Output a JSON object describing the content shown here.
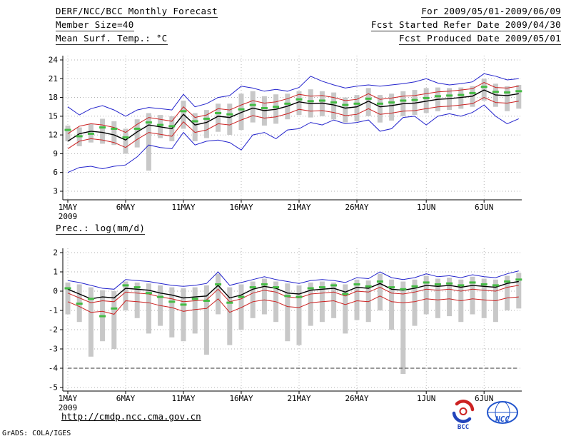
{
  "header": {
    "title": "DERF/NCC/BCC Monthly Forecast",
    "member_size": "Member Size=40",
    "variable_label": "Mean Surf. Temp.: °C",
    "for_range": "For 2009/05/01-2009/06/09",
    "refer_date": "Fcst Started Refer Date 2009/04/30",
    "produced_date": "Fcst Produced Date 2009/05/01"
  },
  "section_labels": {
    "precip": "Prec.: log(mm/d)"
  },
  "footer": {
    "url": "http://cmdp.ncc.cma.gov.cn",
    "grads_credit": "GrADS: COLA/IGES",
    "bcc_logo_text": "BCC",
    "ncc_logo_text": "NCC"
  },
  "colors": {
    "minmax_line": "#2222cc",
    "quartile_line": "#cc2222",
    "mean_line": "#000000",
    "obs_marker": "#44bb44",
    "spread_bar": "#c8c8c8",
    "floor_line": "#333333"
  },
  "chart_data": [
    {
      "type": "line",
      "title": "Mean Surf. Temp.: °C",
      "xlabel": "",
      "ylabel": "",
      "ylim": [
        3,
        24
      ],
      "yticks": [
        3,
        6,
        9,
        12,
        15,
        18,
        21,
        24
      ],
      "grid": "dotted",
      "legend": "none",
      "n_points": 40,
      "x_start": "2009-05-01",
      "x_end": "2009-06-09",
      "x_tick_labels": [
        "1MAY",
        "6MAY",
        "11MAY",
        "16MAY",
        "21MAY",
        "26MAY",
        "1JUN",
        "6JUN"
      ],
      "x_tick_indices": [
        0,
        5,
        10,
        15,
        20,
        25,
        31,
        36
      ],
      "x_year_label": "2009",
      "series": [
        {
          "name": "ensemble-max",
          "color": "#2222cc",
          "width": 1,
          "values": [
            16.5,
            15.2,
            16.2,
            16.7,
            16.0,
            15.0,
            16.0,
            16.4,
            16.2,
            16.0,
            18.5,
            16.5,
            17.0,
            18.0,
            18.3,
            19.8,
            19.5,
            19.0,
            19.3,
            19.0,
            19.6,
            21.4,
            20.6,
            20.0,
            19.5,
            19.8,
            20.0,
            19.8,
            20.0,
            20.2,
            20.5,
            21.0,
            20.3,
            20.0,
            20.2,
            20.5,
            21.8,
            21.4,
            20.8,
            21.0
          ]
        },
        {
          "name": "upper-quartile",
          "color": "#cc2222",
          "width": 1,
          "values": [
            12.2,
            13.4,
            13.8,
            13.6,
            13.2,
            12.4,
            13.7,
            14.8,
            14.5,
            14.2,
            16.5,
            14.8,
            15.2,
            16.2,
            16.0,
            16.8,
            17.5,
            17.1,
            17.3,
            17.8,
            18.5,
            18.2,
            18.3,
            18.0,
            17.5,
            17.7,
            18.6,
            17.7,
            17.9,
            18.2,
            18.3,
            18.6,
            18.9,
            19.0,
            19.2,
            19.4,
            20.4,
            19.6,
            19.5,
            19.8
          ]
        },
        {
          "name": "ensemble-mean",
          "color": "#000000",
          "width": 1.4,
          "values": [
            11.0,
            12.2,
            12.6,
            12.4,
            12.0,
            11.2,
            12.5,
            13.6,
            13.3,
            13.0,
            15.3,
            13.6,
            14.0,
            15.0,
            14.8,
            15.6,
            16.3,
            15.9,
            16.1,
            16.6,
            17.3,
            17.0,
            17.1,
            16.8,
            16.3,
            16.5,
            17.4,
            16.5,
            16.7,
            17.0,
            17.1,
            17.4,
            17.7,
            17.8,
            18.0,
            18.2,
            19.2,
            18.4,
            18.3,
            18.6
          ]
        },
        {
          "name": "lower-quartile",
          "color": "#cc2222",
          "width": 1,
          "values": [
            9.8,
            11.0,
            11.4,
            11.2,
            10.8,
            10.0,
            11.3,
            12.4,
            12.1,
            11.8,
            14.1,
            12.4,
            12.8,
            13.8,
            13.6,
            14.4,
            15.1,
            14.7,
            14.9,
            15.4,
            16.1,
            15.8,
            15.9,
            15.6,
            15.1,
            15.3,
            16.2,
            15.3,
            15.5,
            15.8,
            15.9,
            16.2,
            16.5,
            16.6,
            16.8,
            17.0,
            18.0,
            17.2,
            17.1,
            17.4
          ]
        },
        {
          "name": "ensemble-min",
          "color": "#2222cc",
          "width": 1,
          "values": [
            6.0,
            6.8,
            7.0,
            6.6,
            7.0,
            7.2,
            8.5,
            10.4,
            10.0,
            9.8,
            12.4,
            10.4,
            11.0,
            11.2,
            10.8,
            9.6,
            12.0,
            12.4,
            11.4,
            12.8,
            13.0,
            14.0,
            13.6,
            14.4,
            13.8,
            14.0,
            14.4,
            12.6,
            13.0,
            14.8,
            15.0,
            13.6,
            15.0,
            15.4,
            15.0,
            15.6,
            16.8,
            15.0,
            13.8,
            14.6
          ]
        }
      ],
      "bars": {
        "name": "ensemble-spread",
        "high": [
          13.5,
          13.2,
          13.8,
          14.6,
          14.2,
          13.0,
          14.5,
          15.5,
          15.2,
          15.0,
          17.5,
          15.5,
          16.0,
          17.0,
          17.0,
          18.6,
          19.0,
          18.2,
          18.5,
          18.6,
          19.0,
          19.3,
          19.0,
          18.8,
          18.0,
          18.4,
          19.5,
          18.4,
          18.6,
          19.0,
          19.2,
          19.5,
          19.6,
          19.5,
          19.6,
          19.8,
          21.0,
          20.2,
          19.8,
          20.0
        ],
        "low": [
          11.0,
          10.2,
          10.8,
          10.6,
          10.4,
          9.0,
          10.0,
          6.3,
          11.5,
          11.0,
          13.0,
          11.0,
          11.5,
          12.5,
          12.0,
          12.8,
          14.0,
          13.5,
          13.8,
          14.5,
          15.2,
          14.8,
          15.0,
          14.5,
          14.0,
          14.2,
          15.0,
          14.0,
          14.3,
          15.0,
          15.2,
          15.5,
          15.8,
          16.0,
          16.2,
          16.5,
          17.5,
          16.5,
          15.8,
          16.2
        ]
      },
      "markers": {
        "name": "climatology-marker",
        "values": [
          12.8,
          11.8,
          12.2,
          13.2,
          13.0,
          11.6,
          13.0,
          14.0,
          13.6,
          13.4,
          15.8,
          14.2,
          14.6,
          15.5,
          15.3,
          16.1,
          16.8,
          16.3,
          16.5,
          17.0,
          17.7,
          17.4,
          17.5,
          17.2,
          16.8,
          17.0,
          17.8,
          17.0,
          17.2,
          17.5,
          17.6,
          17.9,
          18.2,
          18.3,
          18.4,
          18.7,
          19.7,
          18.9,
          18.8,
          19.0
        ]
      }
    },
    {
      "type": "line",
      "title": "Prec.: log(mm/d)",
      "xlabel": "",
      "ylabel": "",
      "ylim": [
        -5,
        2
      ],
      "yticks": [
        -5,
        -4,
        -3,
        -2,
        -1,
        0,
        1,
        2
      ],
      "grid": "dotted",
      "legend": "none",
      "n_points": 40,
      "x_start": "2009-05-01",
      "x_end": "2009-06-09",
      "x_tick_labels": [
        "1MAY",
        "6MAY",
        "11MAY",
        "16MAY",
        "21MAY",
        "26MAY",
        "1JUN",
        "6JUN"
      ],
      "x_tick_indices": [
        0,
        5,
        10,
        15,
        20,
        25,
        31,
        36
      ],
      "x_year_label": "2009",
      "series": [
        {
          "name": "ensemble-max",
          "color": "#2222cc",
          "width": 1,
          "values": [
            0.55,
            0.45,
            0.3,
            0.15,
            0.1,
            0.6,
            0.55,
            0.5,
            0.4,
            0.3,
            0.25,
            0.3,
            0.4,
            1.0,
            0.3,
            0.45,
            0.6,
            0.75,
            0.6,
            0.5,
            0.4,
            0.55,
            0.6,
            0.55,
            0.45,
            0.7,
            0.65,
            1.0,
            0.7,
            0.6,
            0.7,
            0.9,
            0.75,
            0.8,
            0.7,
            0.85,
            0.75,
            0.7,
            0.9,
            1.05
          ]
        },
        {
          "name": "ensemble-mean",
          "color": "#000000",
          "width": 1.4,
          "values": [
            0.1,
            -0.15,
            -0.4,
            -0.3,
            -0.35,
            0.15,
            0.1,
            0.05,
            -0.1,
            -0.2,
            -0.35,
            -0.3,
            -0.25,
            0.3,
            -0.35,
            -0.2,
            0.1,
            0.25,
            0.15,
            -0.1,
            -0.15,
            0.05,
            0.1,
            0.15,
            -0.05,
            0.2,
            0.15,
            0.4,
            0.1,
            0.05,
            0.15,
            0.3,
            0.25,
            0.3,
            0.2,
            0.3,
            0.25,
            0.2,
            0.4,
            0.5
          ]
        },
        {
          "name": "upper-quartile",
          "color": "#cc2222",
          "width": 1,
          "values": [
            -0.1,
            -0.35,
            -0.6,
            -0.5,
            -0.55,
            -0.05,
            -0.1,
            -0.15,
            -0.3,
            -0.4,
            -0.55,
            -0.5,
            -0.45,
            0.1,
            -0.55,
            -0.4,
            -0.1,
            0.05,
            -0.05,
            -0.3,
            -0.35,
            -0.15,
            -0.1,
            -0.05,
            -0.25,
            0.0,
            -0.05,
            0.2,
            -0.1,
            -0.15,
            -0.05,
            0.1,
            0.05,
            0.1,
            0.0,
            0.1,
            0.05,
            0.0,
            0.2,
            0.3
          ]
        },
        {
          "name": "lower-quartile",
          "color": "#cc2222",
          "width": 1,
          "values": [
            -0.55,
            -0.8,
            -1.1,
            -1.05,
            -1.2,
            -0.5,
            -0.55,
            -0.6,
            -0.75,
            -0.85,
            -1.05,
            -0.95,
            -0.9,
            -0.4,
            -1.1,
            -0.85,
            -0.55,
            -0.45,
            -0.55,
            -0.8,
            -0.85,
            -0.6,
            -0.55,
            -0.5,
            -0.7,
            -0.5,
            -0.55,
            -0.25,
            -0.55,
            -0.6,
            -0.55,
            -0.4,
            -0.45,
            -0.4,
            -0.5,
            -0.4,
            -0.45,
            -0.5,
            -0.35,
            -0.3
          ]
        },
        {
          "name": "ensemble-min",
          "color": "#333333",
          "width": 1,
          "dash": "5,3",
          "values": [
            -4,
            -4,
            -4,
            -4,
            -4,
            -4,
            -4,
            -4,
            -4,
            -4,
            -4,
            -4,
            -4,
            -4,
            -4,
            -4,
            -4,
            -4,
            -4,
            -4,
            -4,
            -4,
            -4,
            -4,
            -4,
            -4,
            -4,
            -4,
            -4,
            -4,
            -4,
            -4,
            -4,
            -4,
            -4,
            -4,
            -4,
            -4,
            -4,
            -4
          ]
        }
      ],
      "bars": {
        "name": "ensemble-spread",
        "high": [
          0.45,
          0.35,
          0.2,
          0.05,
          0.0,
          0.5,
          0.45,
          0.4,
          0.3,
          0.2,
          0.15,
          0.2,
          0.3,
          0.9,
          0.2,
          0.35,
          0.5,
          0.65,
          0.5,
          0.4,
          0.3,
          0.45,
          0.5,
          0.45,
          0.35,
          0.6,
          0.55,
          0.9,
          0.6,
          0.5,
          0.6,
          0.8,
          0.65,
          0.7,
          0.6,
          0.75,
          0.65,
          0.6,
          0.8,
          0.95
        ],
        "low": [
          -1.2,
          -1.6,
          -3.4,
          -2.6,
          -3.0,
          -1.0,
          -1.4,
          -2.2,
          -1.8,
          -2.4,
          -2.6,
          -2.2,
          -3.3,
          -1.2,
          -2.8,
          -2.0,
          -1.4,
          -1.2,
          -1.6,
          -2.6,
          -2.8,
          -1.8,
          -1.6,
          -1.4,
          -2.2,
          -1.5,
          -1.6,
          -1.0,
          -2.0,
          -4.3,
          -1.8,
          -1.2,
          -1.4,
          -1.3,
          -1.6,
          -1.2,
          -1.4,
          -1.6,
          -1.0,
          -0.9
        ]
      },
      "markers": {
        "name": "climatology-marker",
        "values": [
          0.15,
          -0.65,
          -0.4,
          -1.3,
          -0.9,
          0.3,
          0.2,
          -0.1,
          -0.3,
          -0.55,
          -0.7,
          -0.4,
          -0.5,
          0.35,
          -0.6,
          -0.3,
          0.2,
          0.35,
          0.2,
          -0.25,
          -0.3,
          0.15,
          0.2,
          0.3,
          -0.15,
          0.35,
          0.25,
          0.5,
          0.2,
          0.1,
          0.25,
          0.45,
          0.35,
          0.4,
          0.3,
          0.45,
          0.35,
          0.3,
          0.5,
          0.6
        ]
      }
    }
  ]
}
